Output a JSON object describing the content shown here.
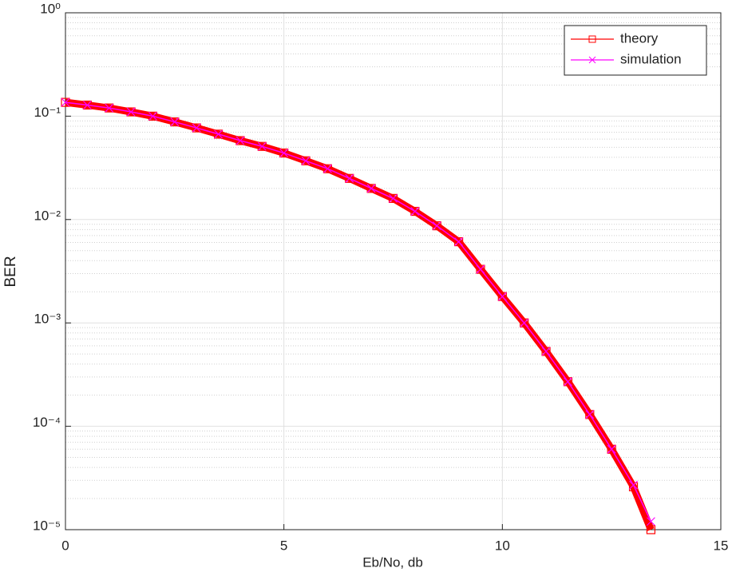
{
  "chart_data": {
    "type": "line",
    "log_y": true,
    "grid": true,
    "minor_grid": true,
    "legend_position": "top-right",
    "xlabel": "Eb/No, db",
    "ylabel": "BER",
    "xlim": [
      0,
      15
    ],
    "xticks": [
      0,
      5,
      10,
      15
    ],
    "ylim": [
      1e-05,
      1
    ],
    "yticks": [
      {
        "value": 1e-05,
        "label": "10⁻⁵"
      },
      {
        "value": 0.0001,
        "label": "10⁻⁴"
      },
      {
        "value": 0.001,
        "label": "10⁻³"
      },
      {
        "value": 0.01,
        "label": "10⁻²"
      },
      {
        "value": 0.1,
        "label": "10⁻¹"
      },
      {
        "value": 1,
        "label": "10⁰"
      }
    ],
    "x": [
      0,
      0.5,
      1,
      1.5,
      2,
      2.5,
      3,
      3.5,
      4,
      4.5,
      5,
      5.5,
      6,
      6.5,
      7,
      7.5,
      8,
      8.5,
      9,
      9.5,
      10,
      10.5,
      11,
      11.5,
      12,
      12.5,
      13,
      13.4
    ],
    "series": [
      {
        "name": "theory",
        "color": "#ff0000",
        "marker": "square",
        "values": [
          0.136,
          0.128,
          0.12,
          0.11,
          0.1,
          0.088,
          0.077,
          0.067,
          0.058,
          0.051,
          0.044,
          0.037,
          0.031,
          0.025,
          0.02,
          0.016,
          0.012,
          0.0087,
          0.0061,
          0.0033,
          0.0018,
          0.001,
          0.00053,
          0.00027,
          0.00013,
          6e-05,
          2.6e-05,
          1e-05
        ]
      },
      {
        "name": "simulation",
        "color": "#ff00ff",
        "marker": "x",
        "values": [
          0.136,
          0.128,
          0.12,
          0.11,
          0.1,
          0.088,
          0.077,
          0.067,
          0.058,
          0.051,
          0.044,
          0.037,
          0.031,
          0.025,
          0.02,
          0.016,
          0.012,
          0.0087,
          0.0061,
          0.0033,
          0.0018,
          0.001,
          0.00053,
          0.00027,
          0.00013,
          6e-05,
          2.7e-05,
          1.2e-05
        ]
      }
    ]
  }
}
